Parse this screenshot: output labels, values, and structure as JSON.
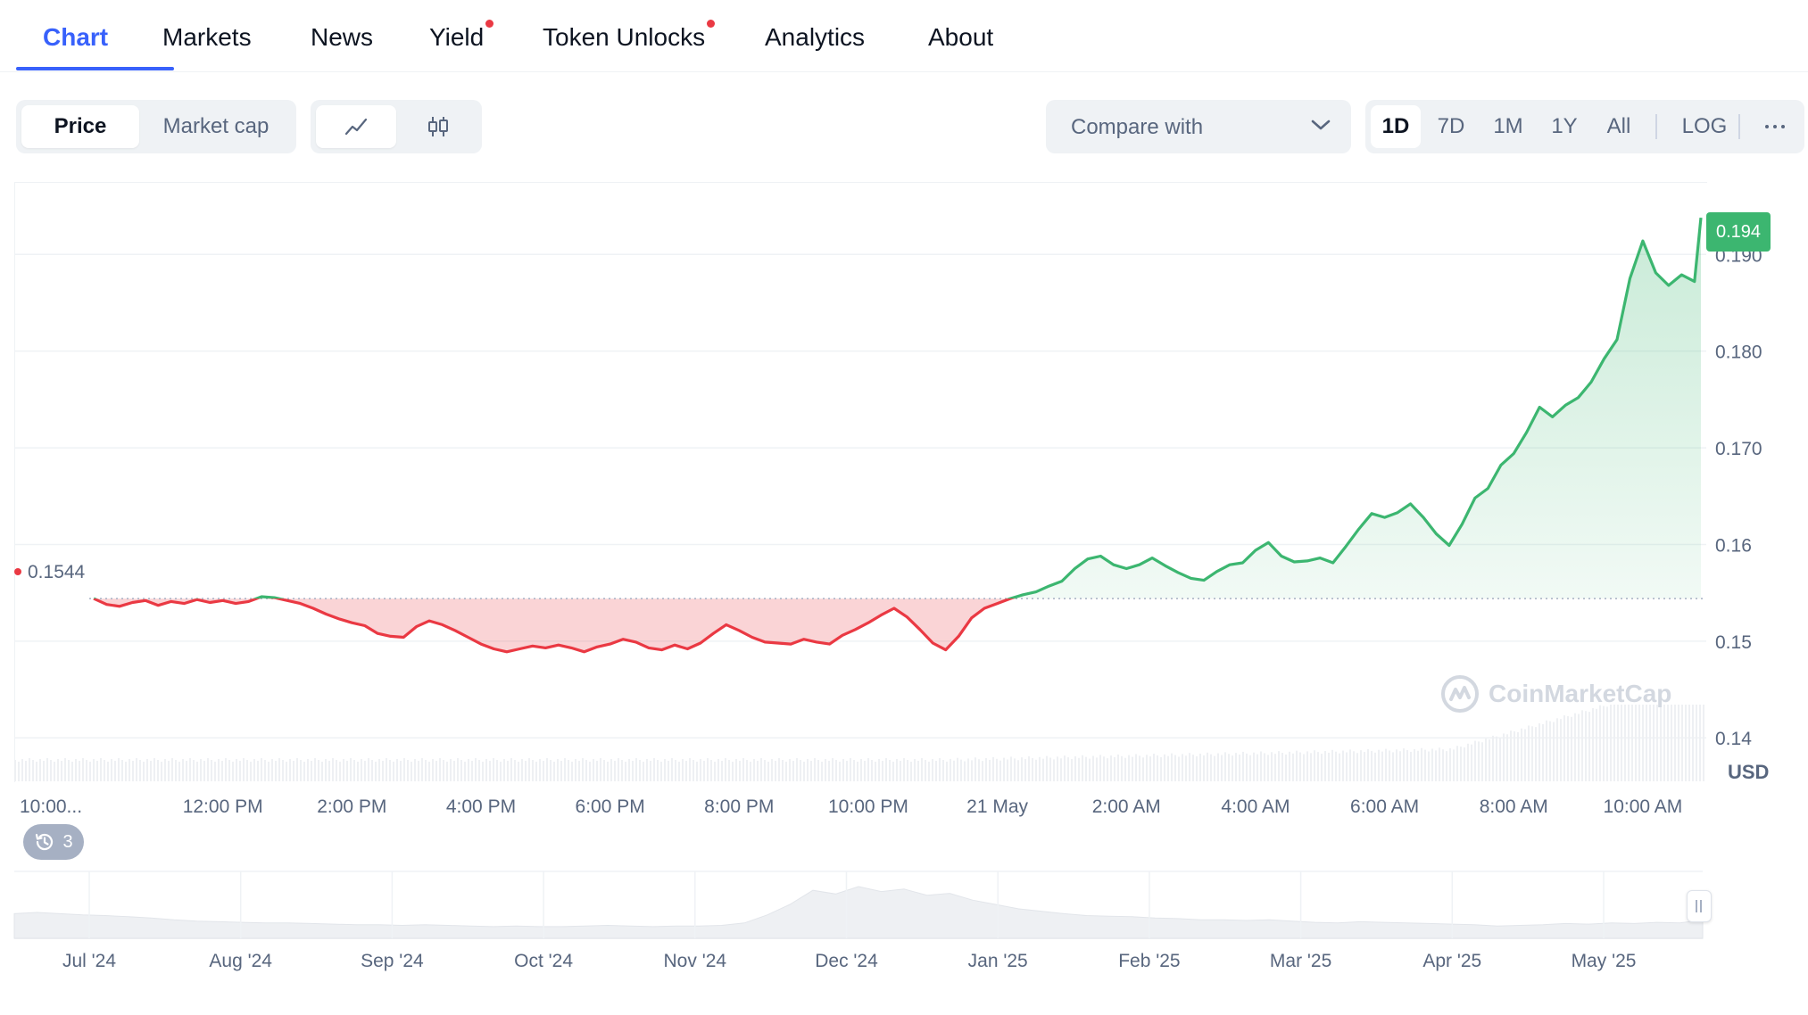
{
  "tabs": [
    {
      "label": "Chart",
      "active": true,
      "dot": false
    },
    {
      "label": "Markets",
      "active": false,
      "dot": false
    },
    {
      "label": "News",
      "active": false,
      "dot": false
    },
    {
      "label": "Yield",
      "active": false,
      "dot": true
    },
    {
      "label": "Token Unlocks",
      "active": false,
      "dot": true
    },
    {
      "label": "Analytics",
      "active": false,
      "dot": false
    },
    {
      "label": "About",
      "active": false,
      "dot": false
    }
  ],
  "toolbar": {
    "price_label": "Price",
    "market_cap_label": "Market cap",
    "line_chart_icon": "line-chart-icon",
    "candlestick_icon": "candlestick-icon",
    "compare_label": "Compare with",
    "ranges": [
      "1D",
      "7D",
      "1M",
      "1Y",
      "All"
    ],
    "selected_range": "1D",
    "log_label": "LOG",
    "more_icon": "more-icon"
  },
  "chart": {
    "current_price": "0.194",
    "reference_price": "0.1544",
    "currency": "USD",
    "history_count": "3",
    "watermark": "CoinMarketCap",
    "colors": {
      "up": "#3cb670",
      "down": "#ea3943",
      "accent": "#3861fb"
    }
  },
  "chart_data": {
    "type": "line",
    "y_ticks": [
      "0.190",
      "0.180",
      "0.170",
      "0.16",
      "0.15",
      "0.14"
    ],
    "y_tick_values": [
      0.19,
      0.18,
      0.17,
      0.16,
      0.15,
      0.14
    ],
    "x_ticks": [
      "10:00...",
      "12:00 PM",
      "2:00 PM",
      "4:00 PM",
      "6:00 PM",
      "8:00 PM",
      "10:00 PM",
      "21 May",
      "2:00 AM",
      "4:00 AM",
      "6:00 AM",
      "8:00 AM",
      "10:00 AM"
    ],
    "x_tick_hours": [
      -0.1,
      2,
      4,
      6,
      8,
      10,
      12,
      14,
      16,
      18,
      20,
      22,
      24
    ],
    "ylim": [
      0.1355,
      0.1975
    ],
    "baseline": 0.1544,
    "series": [
      {
        "x_hours": [
          0,
          0.2,
          0.4,
          0.6,
          0.8,
          1.0,
          1.2,
          1.4,
          1.6,
          1.8,
          2.0,
          2.2,
          2.4,
          2.6,
          2.8,
          3.0,
          3.2,
          3.4,
          3.6,
          3.8,
          4.0,
          4.2,
          4.4,
          4.6,
          4.8,
          5.0,
          5.2,
          5.4,
          5.6,
          5.8,
          6.0,
          6.2,
          6.4,
          6.6,
          6.8,
          7.0,
          7.2,
          7.4,
          7.6,
          7.8,
          8.0,
          8.2,
          8.4,
          8.6,
          8.8,
          9.0,
          9.2,
          9.4,
          9.6,
          9.8,
          10.0,
          10.2,
          10.4,
          10.6,
          10.8,
          11.0,
          11.2,
          11.4,
          11.6,
          11.8,
          12.0,
          12.2,
          12.4,
          12.6,
          12.8,
          13.0,
          13.2,
          13.4,
          13.6,
          13.8,
          14.0,
          14.2,
          14.4,
          14.6,
          14.8,
          15.0,
          15.2,
          15.4,
          15.6,
          15.8,
          16.0,
          16.2,
          16.4,
          16.6,
          16.8,
          17.0,
          17.2,
          17.4,
          17.6,
          17.8,
          18.0,
          18.2,
          18.4,
          18.6,
          18.8,
          19.0,
          19.2,
          19.4,
          19.6,
          19.8,
          20.0,
          20.2,
          20.4,
          20.6,
          20.8,
          21.0,
          21.2,
          21.4,
          21.6,
          21.8,
          22.0,
          22.2,
          22.4,
          22.6,
          22.8,
          23.0,
          23.2,
          23.4,
          23.6,
          23.8,
          24.0,
          24.2,
          24.4,
          24.6,
          24.8,
          24.9
        ],
        "values": [
          0.1544,
          0.1538,
          0.1536,
          0.154,
          0.1542,
          0.1537,
          0.1541,
          0.1539,
          0.1543,
          0.154,
          0.1542,
          0.1539,
          0.1541,
          0.1546,
          0.1545,
          0.1542,
          0.1539,
          0.1534,
          0.1528,
          0.1523,
          0.1519,
          0.1516,
          0.1508,
          0.1505,
          0.1504,
          0.1515,
          0.1521,
          0.1517,
          0.1511,
          0.1504,
          0.1497,
          0.1492,
          0.1489,
          0.1492,
          0.1495,
          0.1493,
          0.1496,
          0.1493,
          0.1489,
          0.1494,
          0.1497,
          0.1502,
          0.1499,
          0.1493,
          0.1491,
          0.1496,
          0.1492,
          0.1498,
          0.1508,
          0.1517,
          0.1511,
          0.1504,
          0.1499,
          0.1498,
          0.1497,
          0.1502,
          0.1499,
          0.1497,
          0.1506,
          0.1512,
          0.1519,
          0.1527,
          0.1534,
          0.1525,
          0.1512,
          0.1498,
          0.1491,
          0.1505,
          0.1524,
          0.1534,
          0.1539,
          0.1544,
          0.1548,
          0.1551,
          0.1557,
          0.1562,
          0.1575,
          0.1585,
          0.1588,
          0.1579,
          0.1575,
          0.1579,
          0.1586,
          0.1578,
          0.1571,
          0.1565,
          0.1563,
          0.1572,
          0.1579,
          0.1581,
          0.1594,
          0.1602,
          0.1588,
          0.1582,
          0.1583,
          0.1586,
          0.1581,
          0.1598,
          0.1616,
          0.1632,
          0.1628,
          0.1633,
          0.1642,
          0.1628,
          0.1611,
          0.1599,
          0.1621,
          0.1648,
          0.1658,
          0.1682,
          0.1694,
          0.1716,
          0.1742,
          0.1732,
          0.1744,
          0.1752,
          0.1768,
          0.1792,
          0.1812,
          0.1875,
          0.1914,
          0.1881,
          0.1868,
          0.1879,
          0.1872,
          0.1938
        ]
      }
    ]
  },
  "overview": {
    "x_ticks": [
      "Jul '24",
      "Aug '24",
      "Sep '24",
      "Oct '24",
      "Nov '24",
      "Dec '24",
      "Jan '25",
      "Feb '25",
      "Mar '25",
      "Apr '25",
      "May '25"
    ],
    "values": [
      0.4,
      0.42,
      0.4,
      0.38,
      0.37,
      0.35,
      0.33,
      0.3,
      0.28,
      0.27,
      0.26,
      0.25,
      0.25,
      0.24,
      0.23,
      0.22,
      0.22,
      0.21,
      0.22,
      0.21,
      0.2,
      0.19,
      0.2,
      0.19,
      0.19,
      0.2,
      0.21,
      0.2,
      0.19,
      0.2,
      0.2,
      0.21,
      0.25,
      0.38,
      0.55,
      0.78,
      0.72,
      0.84,
      0.76,
      0.8,
      0.7,
      0.73,
      0.62,
      0.55,
      0.48,
      0.44,
      0.4,
      0.37,
      0.36,
      0.35,
      0.33,
      0.32,
      0.3,
      0.3,
      0.29,
      0.3,
      0.28,
      0.26,
      0.25,
      0.27,
      0.26,
      0.25,
      0.24,
      0.23,
      0.22,
      0.2,
      0.21,
      0.22,
      0.24,
      0.23,
      0.25,
      0.24,
      0.26,
      0.25,
      0.3
    ]
  }
}
